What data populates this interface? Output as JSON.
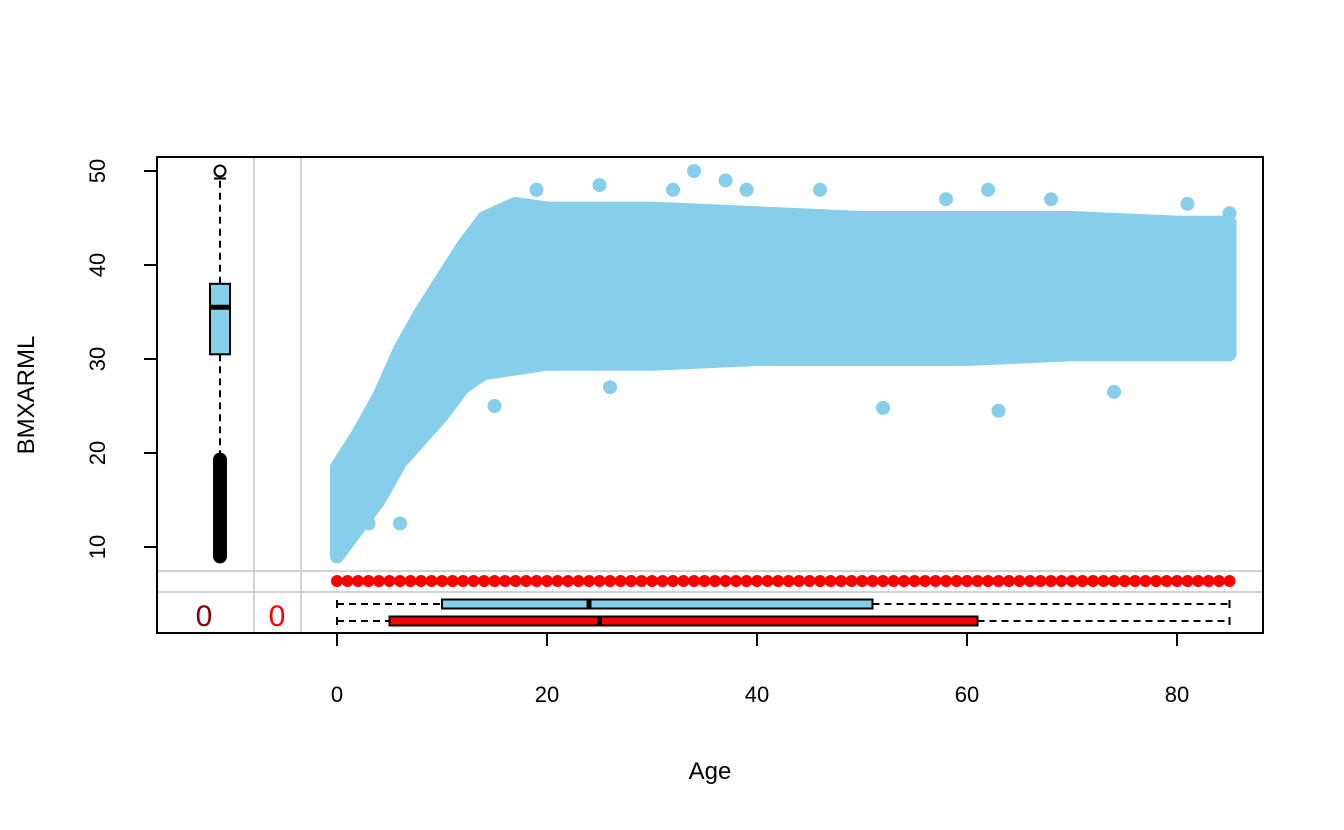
{
  "chart_data": {
    "type": "scatter",
    "title": "",
    "xlabel": "Age",
    "ylabel": "BMXARML",
    "xlim": [
      0,
      85
    ],
    "ylim": [
      9,
      50
    ],
    "x_ticks": [
      0,
      20,
      40,
      60,
      80
    ],
    "y_ticks": [
      10,
      20,
      30,
      40,
      50
    ],
    "point_color": "#87CEEB",
    "missing_color": "#FF0000",
    "cloud_envelope": [
      {
        "x": 0,
        "low": 9,
        "high": 18.5
      },
      {
        "x": 2,
        "low": 12,
        "high": 22
      },
      {
        "x": 4,
        "low": 15,
        "high": 26
      },
      {
        "x": 6,
        "low": 19,
        "high": 31
      },
      {
        "x": 8,
        "low": 21.5,
        "high": 35
      },
      {
        "x": 10,
        "low": 24,
        "high": 38.5
      },
      {
        "x": 12,
        "low": 27,
        "high": 42
      },
      {
        "x": 14,
        "low": 28.5,
        "high": 45
      },
      {
        "x": 17,
        "low": 29,
        "high": 46.5
      },
      {
        "x": 20,
        "low": 29.5,
        "high": 46
      },
      {
        "x": 30,
        "low": 29.5,
        "high": 46
      },
      {
        "x": 40,
        "low": 30,
        "high": 45.5
      },
      {
        "x": 50,
        "low": 30,
        "high": 45
      },
      {
        "x": 60,
        "low": 30,
        "high": 45
      },
      {
        "x": 70,
        "low": 30.5,
        "high": 45
      },
      {
        "x": 80,
        "low": 30.5,
        "high": 44.5
      },
      {
        "x": 85,
        "low": 30.5,
        "high": 44.5
      }
    ],
    "outliers": [
      [
        3,
        12.5
      ],
      [
        6,
        12.5
      ],
      [
        15,
        25
      ],
      [
        26,
        27
      ],
      [
        52,
        24.8
      ],
      [
        63,
        24.5
      ],
      [
        74,
        26.5
      ],
      [
        34,
        50
      ],
      [
        25,
        48.5
      ],
      [
        19,
        48
      ],
      [
        37,
        49
      ],
      [
        62,
        48
      ],
      [
        68,
        47
      ],
      [
        81,
        46.5
      ],
      [
        85,
        45.5
      ],
      [
        46,
        48
      ],
      [
        58,
        47
      ],
      [
        32,
        48
      ],
      [
        39,
        48
      ]
    ],
    "y_boxplot": {
      "whisker_low": 19.3,
      "q1": 30.5,
      "median": 35.5,
      "q3": 38,
      "whisker_high": 49.2,
      "outlier_high": 50,
      "outlier_band": [
        9,
        19.3
      ]
    },
    "missing_y_ages": {
      "from": 0,
      "to": 85,
      "step": 1
    },
    "x_boxplot_observed": {
      "whisker_low": 0,
      "q1": 10,
      "median": 24,
      "q3": 51,
      "whisker_high": 85
    },
    "x_boxplot_missing": {
      "whisker_low": 0,
      "q1": 5,
      "median": 25,
      "q3": 61,
      "whisker_high": 85
    },
    "missing_counts": [
      "0",
      "0"
    ]
  }
}
